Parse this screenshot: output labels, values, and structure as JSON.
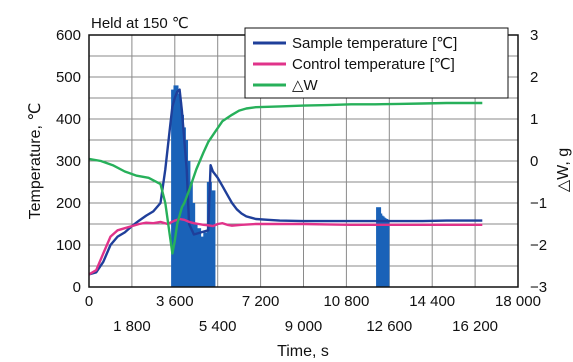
{
  "chart_data": {
    "type": "line",
    "annotation": "Held at 150 ℃",
    "xlabel": "Time, s",
    "ylabel_left": "Temperature, ℃",
    "ylabel_right": "△W, g",
    "xlim": [
      0,
      18000
    ],
    "ylim_left": [
      0,
      600
    ],
    "ylim_right": [
      -3,
      3
    ],
    "x_ticks_upper": [
      "0",
      "3 600",
      "7 200",
      "10 800",
      "14 400",
      "18 000"
    ],
    "x_ticks_upper_values": [
      0,
      3600,
      7200,
      10800,
      14400,
      18000
    ],
    "x_ticks_lower": [
      "1 800",
      "5 400",
      "9 000",
      "12 600",
      "16 200"
    ],
    "x_ticks_lower_values": [
      1800,
      5400,
      9000,
      12600,
      16200
    ],
    "y_ticks_left": [
      "0",
      "100",
      "200",
      "300",
      "400",
      "500",
      "600"
    ],
    "y_ticks_left_values": [
      0,
      100,
      200,
      300,
      400,
      500,
      600
    ],
    "y_ticks_right": [
      "−3",
      "−2",
      "−1",
      "0",
      "1",
      "2",
      "3"
    ],
    "y_ticks_right_values": [
      -3,
      -2,
      -1,
      0,
      1,
      2,
      3
    ],
    "grid": true,
    "legend_position": "top-right",
    "colors": {
      "sample": "#1f3f9a",
      "control": "#e0338a",
      "dw": "#27b05a",
      "spikes": "#1a62b8",
      "grid": "#8a8a8a"
    },
    "series": [
      {
        "name": "Sample temperature [℃]",
        "axis": "left",
        "x": [
          0,
          300,
          600,
          900,
          1200,
          1500,
          1800,
          2100,
          2400,
          2700,
          3000,
          3200,
          3400,
          3500,
          3600,
          3700,
          3800,
          3900,
          4000,
          4100,
          4200,
          4400,
          4700,
          5000,
          5100,
          5200,
          5400,
          5600,
          5800,
          6000,
          6200,
          6400,
          6600,
          6800,
          7000,
          7500,
          8000,
          9000,
          10000,
          11000,
          12000,
          13000,
          14000,
          15000,
          16000,
          16500
        ],
        "y": [
          30,
          35,
          60,
          100,
          120,
          130,
          145,
          158,
          170,
          180,
          200,
          280,
          380,
          430,
          450,
          465,
          470,
          420,
          350,
          280,
          150,
          125,
          130,
          135,
          290,
          275,
          260,
          240,
          220,
          200,
          185,
          175,
          168,
          165,
          162,
          160,
          158,
          157,
          157,
          157,
          157,
          157,
          157,
          158,
          158,
          158
        ]
      },
      {
        "name": "Control temperature [℃]",
        "axis": "left",
        "x": [
          0,
          300,
          600,
          900,
          1200,
          1500,
          1800,
          2100,
          2400,
          2700,
          3000,
          3300,
          3600,
          3800,
          4000,
          4200,
          4400,
          4600,
          4800,
          5000,
          5200,
          5400,
          5600,
          5800,
          6000,
          6400,
          7000,
          8000,
          9000,
          10000,
          11000,
          12000,
          13000,
          14000,
          15000,
          16000,
          16500
        ],
        "y": [
          30,
          40,
          80,
          120,
          135,
          140,
          145,
          150,
          153,
          152,
          155,
          150,
          158,
          162,
          160,
          155,
          152,
          150,
          148,
          147,
          145,
          150,
          152,
          148,
          146,
          148,
          150,
          150,
          150,
          149,
          148,
          148,
          148,
          148,
          148,
          148,
          148
        ]
      },
      {
        "name": "△W",
        "axis": "right",
        "x": [
          0,
          500,
          1000,
          1500,
          2000,
          2500,
          3000,
          3200,
          3400,
          3500,
          3600,
          3700,
          3800,
          3900,
          4000,
          4200,
          4500,
          4800,
          5000,
          5300,
          5600,
          6000,
          6300,
          6600,
          7000,
          8000,
          9000,
          10000,
          11000,
          12000,
          13000,
          14000,
          15000,
          16000,
          16500
        ],
        "y": [
          0.05,
          0.0,
          -0.1,
          -0.25,
          -0.35,
          -0.4,
          -0.55,
          -1.0,
          -1.8,
          -2.2,
          -1.9,
          -1.5,
          -1.3,
          -1.1,
          -1.0,
          -0.7,
          -0.2,
          0.2,
          0.45,
          0.7,
          0.95,
          1.1,
          1.2,
          1.25,
          1.28,
          1.3,
          1.32,
          1.33,
          1.35,
          1.35,
          1.36,
          1.37,
          1.38,
          1.38,
          1.38
        ]
      }
    ],
    "spike_regions": [
      {
        "x": [
          3550,
          3650,
          3720,
          3800,
          3880,
          3960,
          4050,
          4150,
          4250,
          4350,
          4450,
          4600,
          4750,
          4900,
          5050,
          5200
        ],
        "y_low": [
          0,
          0,
          0,
          0,
          0,
          0,
          0,
          0,
          0,
          0,
          0,
          0,
          0,
          0,
          0,
          0
        ],
        "y_high": [
          470,
          480,
          460,
          440,
          410,
          380,
          350,
          300,
          250,
          200,
          150,
          140,
          120,
          130,
          250,
          230
        ]
      },
      {
        "x": [
          12150,
          12200,
          12250,
          12300,
          12350,
          12400,
          12450,
          12500
        ],
        "y_low": [
          0,
          0,
          0,
          0,
          0,
          0,
          0,
          0
        ],
        "y_high": [
          190,
          175,
          170,
          168,
          165,
          163,
          162,
          160
        ]
      }
    ]
  }
}
